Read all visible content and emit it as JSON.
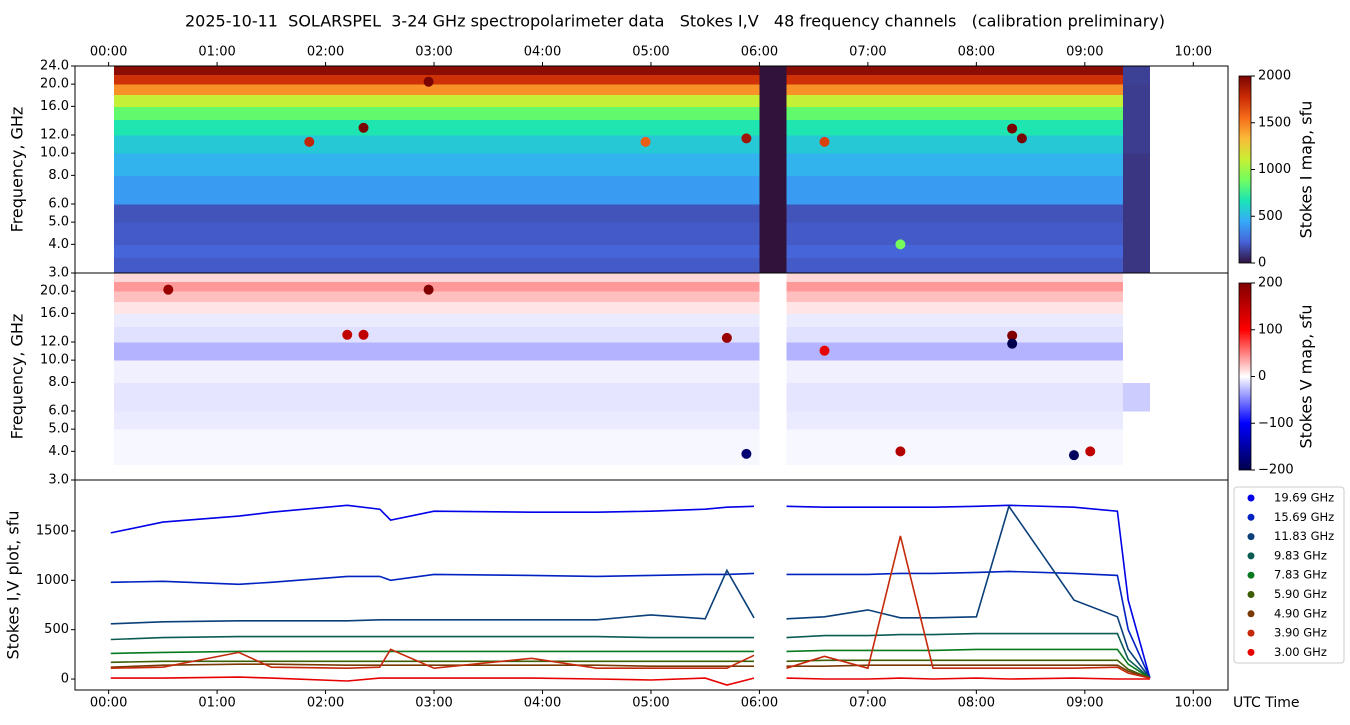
{
  "chart_data": [
    {
      "type": "heatmap",
      "title": "2025-10-11  SOLARSPEL  3-24 GHz spectropolarimeter data   Stokes I,V   48 frequency channels   (calibration preliminary)",
      "ylabel": "Frequency, GHz",
      "log_y": true,
      "colormap": "turbo",
      "xlim": [
        -0.31,
        10.32
      ],
      "xticks": [
        {
          "value": 0,
          "label": "00:00"
        },
        {
          "value": 1,
          "label": "01:00"
        },
        {
          "value": 2,
          "label": "02:00"
        },
        {
          "value": 3,
          "label": "03:00"
        },
        {
          "value": 4,
          "label": "04:00"
        },
        {
          "value": 5,
          "label": "05:00"
        },
        {
          "value": 6,
          "label": "06:00"
        },
        {
          "value": 7,
          "label": "07:00"
        },
        {
          "value": 8,
          "label": "08:00"
        },
        {
          "value": 9,
          "label": "09:00"
        },
        {
          "value": 10,
          "label": "10:00"
        }
      ],
      "ylim": [
        3,
        24
      ],
      "yticks": [
        {
          "value": 3,
          "label": "3.0"
        },
        {
          "value": 4,
          "label": "4.0"
        },
        {
          "value": 5,
          "label": "5.0"
        },
        {
          "value": 6,
          "label": "6.0"
        },
        {
          "value": 8,
          "label": "8.0"
        },
        {
          "value": 10,
          "label": "10.0"
        },
        {
          "value": 12,
          "label": "12.0"
        },
        {
          "value": 16,
          "label": "16.0"
        },
        {
          "value": 20,
          "label": "20.0"
        },
        {
          "value": 24,
          "label": "24.0"
        }
      ],
      "x_edges": [
        0.05,
        6.0,
        6.25,
        9.35,
        9.6
      ],
      "y_edges": [
        3,
        3.5,
        4,
        5,
        6,
        8,
        10,
        12,
        14,
        16,
        18,
        20,
        22,
        24
      ],
      "values": [
        [
          200,
          0,
          200,
          100
        ],
        [
          230,
          0,
          230,
          100
        ],
        [
          200,
          0,
          200,
          100
        ],
        [
          180,
          0,
          180,
          100
        ],
        [
          400,
          0,
          400,
          100
        ],
        [
          480,
          0,
          480,
          100
        ],
        [
          560,
          0,
          560,
          120
        ],
        [
          680,
          0,
          680,
          120
        ],
        [
          850,
          0,
          850,
          120
        ],
        [
          1100,
          0,
          1100,
          120
        ],
        [
          1450,
          0,
          1450,
          120
        ],
        [
          1750,
          0,
          1750,
          130
        ],
        [
          1950,
          0,
          1950,
          130
        ]
      ],
      "events": {
        "x": [
          1.85,
          2.35,
          2.95,
          4.95,
          5.88,
          6.6,
          7.3,
          8.33,
          8.42
        ],
        "y": [
          11.2,
          12.9,
          20.5,
          11.2,
          11.6,
          11.2,
          4.0,
          12.8,
          11.6
        ],
        "values": [
          1800,
          2000,
          2000,
          1600,
          1900,
          1700,
          900,
          2000,
          2000
        ]
      },
      "colorbar": {
        "label": "Stokes I map, sfu",
        "lim": [
          0,
          2000
        ],
        "ticks": [
          0,
          500,
          1000,
          1500,
          2000
        ]
      }
    },
    {
      "type": "heatmap",
      "ylabel": "Frequency, GHz",
      "log_y": true,
      "colormap": "seismic",
      "xlim": [
        -0.31,
        10.32
      ],
      "ylim": [
        3,
        24
      ],
      "yticks": [
        {
          "value": 3,
          "label": "3.0"
        },
        {
          "value": 4,
          "label": "4.0"
        },
        {
          "value": 5,
          "label": "5.0"
        },
        {
          "value": 6,
          "label": "6.0"
        },
        {
          "value": 8,
          "label": "8.0"
        },
        {
          "value": 10,
          "label": "10.0"
        },
        {
          "value": 12,
          "label": "12.0"
        },
        {
          "value": 16,
          "label": "16.0"
        },
        {
          "value": 20,
          "label": "20.0"
        }
      ],
      "x_edges": [
        0.05,
        6.0,
        6.25,
        9.35,
        9.6
      ],
      "y_edges": [
        3,
        3.5,
        4,
        5,
        6,
        8,
        10,
        12,
        14,
        16,
        18,
        20,
        22,
        24
      ],
      "values": [
        [
          0,
          0,
          0,
          0
        ],
        [
          -3,
          0,
          -3,
          0
        ],
        [
          -3,
          0,
          -3,
          0
        ],
        [
          -8,
          0,
          -8,
          0
        ],
        [
          -10,
          0,
          -10,
          -20
        ],
        [
          -6,
          0,
          -6,
          0
        ],
        [
          -30,
          0,
          -30,
          0
        ],
        [
          -12,
          0,
          -12,
          0
        ],
        [
          -8,
          0,
          -8,
          0
        ],
        [
          10,
          0,
          10,
          0
        ],
        [
          25,
          0,
          25,
          0
        ],
        [
          40,
          0,
          40,
          0
        ],
        [
          15,
          0,
          15,
          0
        ]
      ],
      "events": {
        "x": [
          0.55,
          2.2,
          2.35,
          2.95,
          5.7,
          5.88,
          7.3,
          8.33,
          8.33,
          8.9,
          9.05,
          6.6
        ],
        "y": [
          20.3,
          12.9,
          12.9,
          20.3,
          12.5,
          3.9,
          4.0,
          12.8,
          11.8,
          3.85,
          4.0,
          11.0
        ],
        "values": [
          180,
          150,
          150,
          200,
          180,
          -180,
          160,
          200,
          -200,
          -190,
          150,
          120
        ]
      },
      "colorbar": {
        "label": "Stokes V map, sfu",
        "lim": [
          -200,
          200
        ],
        "ticks": [
          {
            "value": -200,
            "label": "−200"
          },
          {
            "value": -100,
            "label": "−100"
          },
          0,
          100,
          200
        ]
      }
    },
    {
      "type": "line",
      "ylabel": "Stokes I,V plot, sfu",
      "xlabel": "UTC Time",
      "xlim": [
        -0.31,
        10.32
      ],
      "xticks": [
        {
          "value": 0,
          "label": "00:00"
        },
        {
          "value": 1,
          "label": "01:00"
        },
        {
          "value": 2,
          "label": "02:00"
        },
        {
          "value": 3,
          "label": "03:00"
        },
        {
          "value": 4,
          "label": "04:00"
        },
        {
          "value": 5,
          "label": "05:00"
        },
        {
          "value": 6,
          "label": "06:00"
        },
        {
          "value": 7,
          "label": "07:00"
        },
        {
          "value": 8,
          "label": "08:00"
        },
        {
          "value": 9,
          "label": "09:00"
        },
        {
          "value": 10,
          "label": "10:00"
        }
      ],
      "ylim": [
        -111,
        2016
      ],
      "yticks": [
        0,
        500,
        1000,
        1500
      ],
      "x": [
        0.02,
        0.5,
        1.2,
        1.5,
        2.2,
        2.5,
        2.6,
        3.0,
        3.9,
        4.5,
        5.0,
        5.5,
        5.7,
        5.95,
        6.1,
        6.25,
        6.6,
        7.0,
        7.3,
        7.6,
        8.0,
        8.3,
        8.9,
        9.3,
        9.4,
        9.6
      ],
      "legend": "outside-right",
      "series": [
        {
          "name": "19.69 GHz",
          "color": "#0000e8",
          "values": [
            1480,
            1590,
            1650,
            1690,
            1760,
            1720,
            1610,
            1700,
            1690,
            1690,
            1700,
            1720,
            1740,
            1750,
            null,
            1750,
            1740,
            1740,
            1740,
            1740,
            1750,
            1760,
            1740,
            1700,
            800,
            10
          ]
        },
        {
          "name": "15.69 GHz",
          "color": "#0022c0",
          "values": [
            980,
            990,
            960,
            980,
            1040,
            1040,
            1000,
            1060,
            1050,
            1040,
            1050,
            1060,
            1060,
            1070,
            null,
            1060,
            1060,
            1060,
            1070,
            1070,
            1080,
            1090,
            1070,
            1050,
            500,
            10
          ]
        },
        {
          "name": "11.83 GHz",
          "color": "#0b3f7a",
          "values": [
            560,
            580,
            590,
            590,
            590,
            600,
            600,
            600,
            600,
            600,
            650,
            610,
            1100,
            620,
            null,
            610,
            630,
            700,
            620,
            620,
            630,
            1750,
            800,
            630,
            300,
            10
          ]
        },
        {
          "name": "9.83 GHz",
          "color": "#0a5c52",
          "values": [
            400,
            420,
            430,
            430,
            430,
            430,
            430,
            430,
            430,
            430,
            420,
            420,
            420,
            420,
            null,
            420,
            440,
            440,
            450,
            450,
            460,
            460,
            460,
            460,
            200,
            10
          ]
        },
        {
          "name": "7.83 GHz",
          "color": "#07791e",
          "values": [
            260,
            270,
            280,
            280,
            280,
            280,
            280,
            280,
            280,
            280,
            280,
            280,
            280,
            280,
            null,
            280,
            290,
            290,
            290,
            290,
            300,
            300,
            300,
            300,
            150,
            10
          ]
        },
        {
          "name": "5.90 GHz",
          "color": "#3d5e05",
          "values": [
            170,
            180,
            180,
            180,
            180,
            180,
            180,
            180,
            180,
            180,
            180,
            180,
            180,
            180,
            null,
            180,
            190,
            190,
            190,
            190,
            190,
            190,
            190,
            190,
            100,
            10
          ]
        },
        {
          "name": "4.90 GHz",
          "color": "#7a3a05",
          "values": [
            120,
            140,
            150,
            150,
            140,
            140,
            140,
            140,
            140,
            140,
            130,
            130,
            130,
            130,
            null,
            130,
            130,
            140,
            140,
            140,
            140,
            140,
            140,
            140,
            80,
            10
          ]
        },
        {
          "name": "3.90 GHz",
          "color": "#c42a0a",
          "values": [
            110,
            120,
            270,
            120,
            110,
            120,
            300,
            110,
            210,
            110,
            110,
            110,
            110,
            240,
            null,
            110,
            230,
            110,
            1450,
            110,
            110,
            110,
            110,
            120,
            60,
            10
          ]
        },
        {
          "name": "3.00 GHz",
          "color": "#e80000",
          "values": [
            10,
            10,
            20,
            10,
            -20,
            10,
            10,
            10,
            10,
            0,
            -10,
            10,
            -60,
            10,
            null,
            10,
            0,
            0,
            10,
            0,
            10,
            0,
            10,
            0,
            0,
            0
          ]
        }
      ]
    }
  ]
}
